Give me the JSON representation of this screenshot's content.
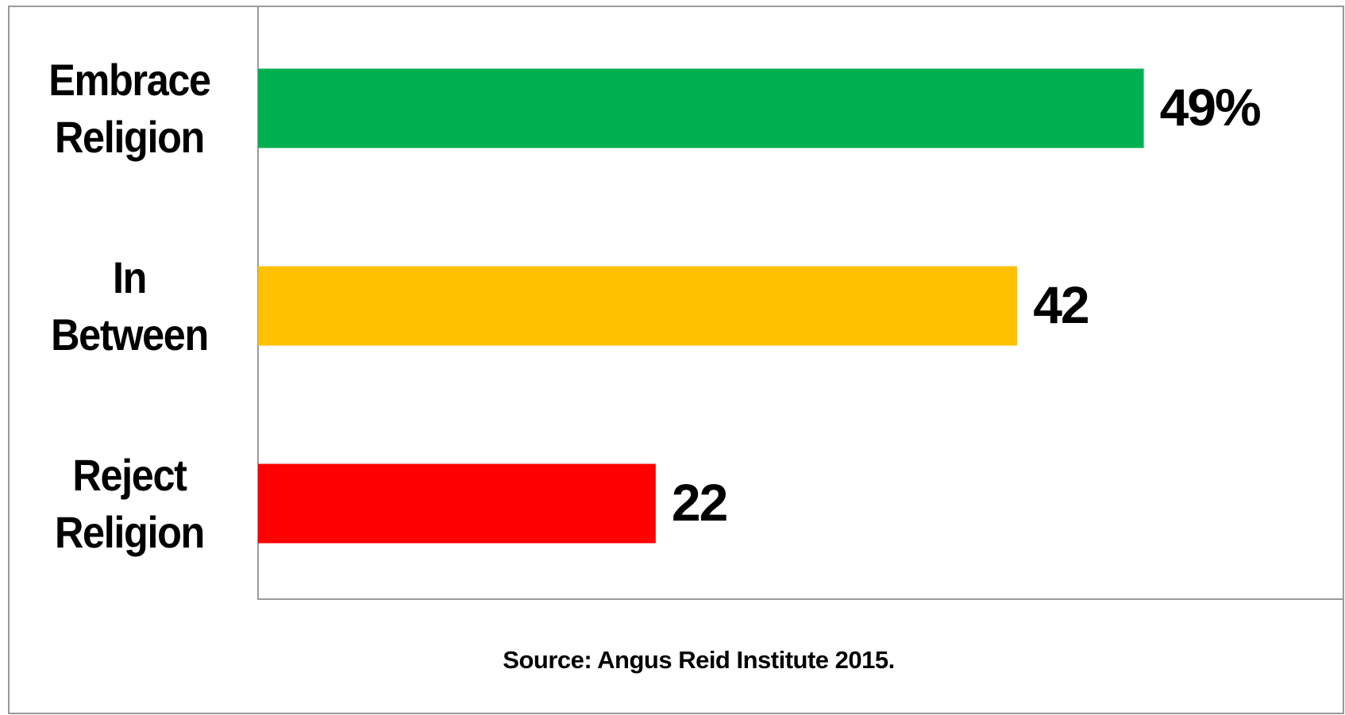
{
  "chart_data": {
    "type": "bar",
    "orientation": "horizontal",
    "categories": [
      "Embrace Religion",
      "In Between",
      "Reject Religion"
    ],
    "values": [
      49,
      42,
      22
    ],
    "value_labels": [
      "49%",
      "42",
      "22"
    ],
    "colors": [
      "#00b050",
      "#ffc000",
      "#ff0000"
    ],
    "xlim": [
      0,
      60
    ],
    "source": "Source: Angus Reid Institute 2015."
  }
}
